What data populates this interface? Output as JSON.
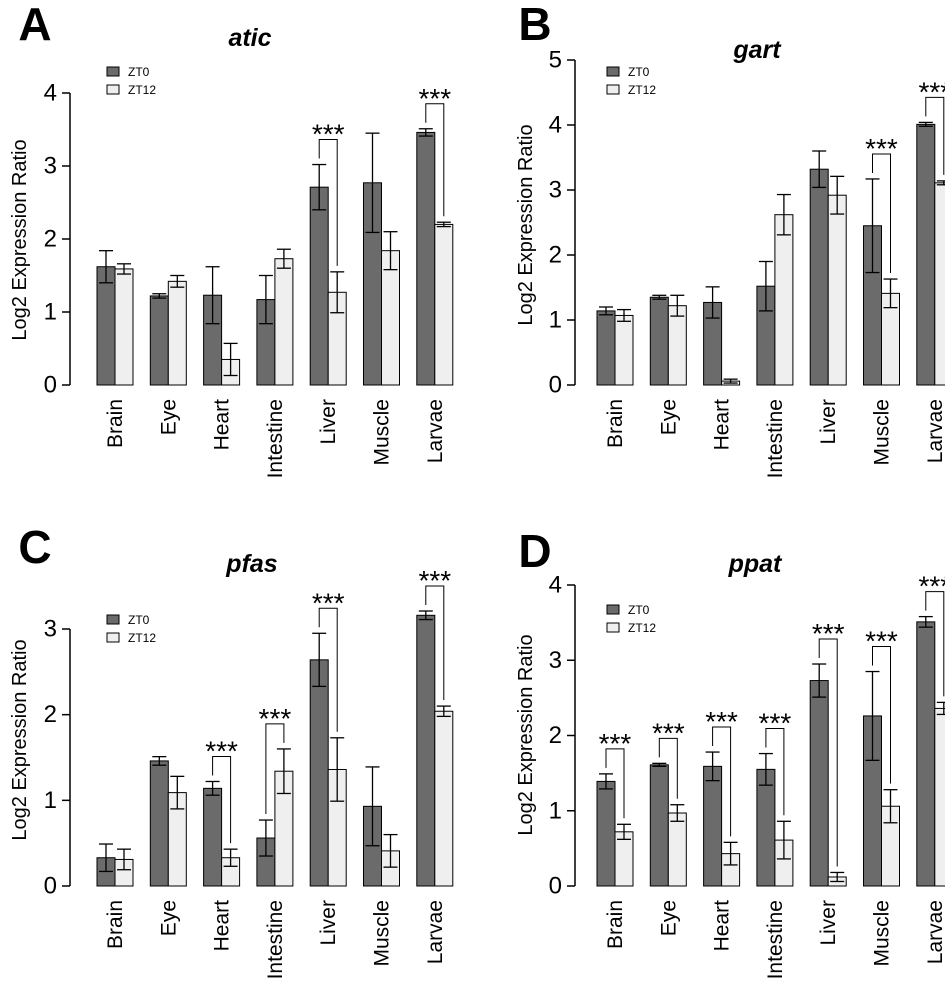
{
  "figure": {
    "legend": {
      "zt0": "ZT0",
      "zt12": "ZT12"
    },
    "colors": {
      "zt0": "#6b6b6b",
      "zt12": "#efefef",
      "stroke": "#000000"
    }
  },
  "chart_data": [
    {
      "panel": "A",
      "type": "bar",
      "title": "atic",
      "ylabel": "Log2 Expression Ratio",
      "ylim": [
        0,
        4
      ],
      "yticks": [
        0,
        1,
        2,
        3,
        4
      ],
      "categories": [
        "Brain",
        "Eye",
        "Heart",
        "Intestine",
        "Liver",
        "Muscle",
        "Larvae"
      ],
      "series": [
        {
          "name": "ZT0",
          "values": [
            1.62,
            1.22,
            1.23,
            1.17,
            2.71,
            2.77,
            3.46
          ],
          "errors": [
            0.22,
            0.03,
            0.39,
            0.33,
            0.31,
            0.68,
            0.05
          ]
        },
        {
          "name": "ZT12",
          "values": [
            1.59,
            1.42,
            0.35,
            1.73,
            1.27,
            1.84,
            2.2
          ],
          "errors": [
            0.07,
            0.08,
            0.22,
            0.13,
            0.28,
            0.26,
            0.03
          ]
        }
      ],
      "significance": [
        {
          "category": "Liver",
          "label": "***"
        },
        {
          "category": "Larvae",
          "label": "***"
        }
      ],
      "legend_position": "top-left"
    },
    {
      "panel": "B",
      "type": "bar",
      "title": "gart",
      "ylabel": "Log2 Expression Ratio",
      "ylim": [
        0,
        5
      ],
      "yticks": [
        0,
        1,
        2,
        3,
        4,
        5
      ],
      "categories": [
        "Brain",
        "Eye",
        "Heart",
        "Intestine",
        "Liver",
        "Muscle",
        "Larvae"
      ],
      "series": [
        {
          "name": "ZT0",
          "values": [
            1.14,
            1.35,
            1.27,
            1.52,
            3.32,
            2.45,
            4.01
          ],
          "errors": [
            0.06,
            0.03,
            0.24,
            0.38,
            0.28,
            0.72,
            0.03
          ]
        },
        {
          "name": "ZT12",
          "values": [
            1.07,
            1.22,
            0.06,
            2.62,
            2.92,
            1.41,
            3.11
          ],
          "errors": [
            0.09,
            0.16,
            0.03,
            0.31,
            0.29,
            0.22,
            0.03
          ]
        }
      ],
      "significance": [
        {
          "category": "Muscle",
          "label": "***"
        },
        {
          "category": "Larvae",
          "label": "***"
        }
      ],
      "legend_position": "top-left"
    },
    {
      "panel": "C",
      "type": "bar",
      "title": "pfas",
      "ylabel": "Log2 Expression Ratio",
      "ylim": [
        0,
        3
      ],
      "yticks": [
        0,
        1,
        2,
        3
      ],
      "categories": [
        "Brain",
        "Eye",
        "Heart",
        "Intestine",
        "Liver",
        "Muscle",
        "Larvae"
      ],
      "series": [
        {
          "name": "ZT0",
          "values": [
            0.33,
            1.46,
            1.14,
            0.56,
            2.64,
            0.93,
            3.16
          ],
          "errors": [
            0.16,
            0.05,
            0.08,
            0.21,
            0.31,
            0.46,
            0.05
          ]
        },
        {
          "name": "ZT12",
          "values": [
            0.31,
            1.09,
            0.33,
            1.34,
            1.36,
            0.41,
            2.04
          ],
          "errors": [
            0.12,
            0.19,
            0.1,
            0.26,
            0.37,
            0.19,
            0.06
          ]
        }
      ],
      "significance": [
        {
          "category": "Heart",
          "label": "***"
        },
        {
          "category": "Intestine",
          "label": "***"
        },
        {
          "category": "Liver",
          "label": "***"
        },
        {
          "category": "Larvae",
          "label": "***"
        }
      ],
      "legend_position": "top-left"
    },
    {
      "panel": "D",
      "type": "bar",
      "title": "ppat",
      "ylabel": "Log2 Expression Ratio",
      "ylim": [
        0,
        4
      ],
      "yticks": [
        0,
        1,
        2,
        3,
        4
      ],
      "categories": [
        "Brain",
        "Eye",
        "Heart",
        "Intestine",
        "Liver",
        "Muscle",
        "Larvae"
      ],
      "series": [
        {
          "name": "ZT0",
          "values": [
            1.39,
            1.61,
            1.59,
            1.55,
            2.73,
            2.26,
            3.51
          ],
          "errors": [
            0.1,
            0.02,
            0.19,
            0.21,
            0.22,
            0.59,
            0.07
          ]
        },
        {
          "name": "ZT12",
          "values": [
            0.72,
            0.97,
            0.43,
            0.61,
            0.12,
            1.06,
            2.36
          ],
          "errors": [
            0.1,
            0.11,
            0.15,
            0.25,
            0.06,
            0.22,
            0.08
          ]
        }
      ],
      "significance": [
        {
          "category": "Brain",
          "label": "***"
        },
        {
          "category": "Eye",
          "label": "***"
        },
        {
          "category": "Heart",
          "label": "***"
        },
        {
          "category": "Intestine",
          "label": "***"
        },
        {
          "category": "Liver",
          "label": "***"
        },
        {
          "category": "Muscle",
          "label": "***"
        },
        {
          "category": "Larvae",
          "label": "***"
        }
      ],
      "legend_position": "top-left"
    }
  ]
}
